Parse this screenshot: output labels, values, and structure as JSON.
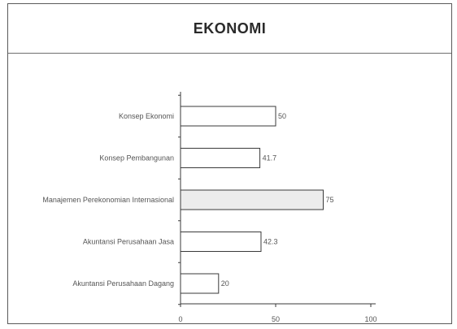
{
  "chart_data": {
    "type": "bar",
    "orientation": "horizontal",
    "title": "EKONOMI",
    "categories": [
      "Konsep Ekonomi",
      "Konsep Pembangunan",
      "Manajemen Perekonomian Internasional",
      "Akuntansi Perusahaan Jasa",
      "Akuntansi Perusahaan Dagang"
    ],
    "values": [
      50,
      41.7,
      75,
      42.3,
      20
    ],
    "value_labels": [
      "50",
      "41.7",
      "75",
      "42.3",
      "20"
    ],
    "highlighted_index": 2,
    "xlim": [
      0,
      100
    ],
    "xticks": [
      0,
      50,
      100
    ],
    "xlabel": "",
    "ylabel": "",
    "grid": false,
    "legend": "none",
    "colors": {
      "bar_fill": "#ffffff",
      "bar_highlight_fill": "#ececec",
      "bar_stroke": "#3a3a3a",
      "axis": "#3a3a3a",
      "text": "#555555"
    }
  }
}
